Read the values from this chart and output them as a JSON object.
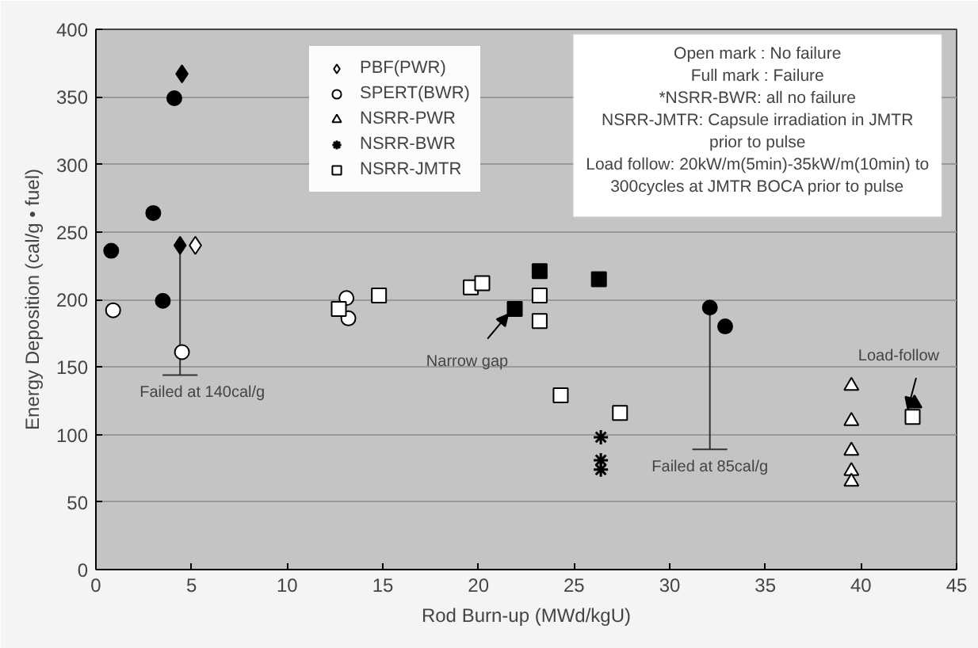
{
  "chart_data": {
    "type": "scatter",
    "xlabel": "Rod Burn-up (MWd/kgU)",
    "ylabel": "Energy Deposition (cal/g • fuel)",
    "xlim": [
      0,
      45
    ],
    "xticks": [
      0,
      5,
      10,
      15,
      20,
      25,
      30,
      35,
      40,
      45
    ],
    "ylim": [
      0,
      400
    ],
    "yticks": [
      0,
      50,
      100,
      150,
      200,
      250,
      300,
      350,
      400
    ],
    "grid": "y",
    "legend": "top",
    "series": [
      {
        "name": "PBF(PWR)",
        "marker": "diamond",
        "color": "#ffffff",
        "x": [
          5.2
        ],
        "values": [
          240
        ]
      },
      {
        "name": "SPERT(BWR)",
        "marker": "circle",
        "color": "#ffffff",
        "x": [
          0.9,
          4.5,
          13.1,
          13.2
        ],
        "values": [
          192,
          161,
          201,
          186
        ]
      },
      {
        "name": "NSRR-PWR",
        "marker": "triangle",
        "color": "#ffffff",
        "x": [
          39.5,
          39.5,
          39.5,
          39.5,
          39.5
        ],
        "values": [
          136,
          110,
          88,
          73,
          65
        ]
      },
      {
        "name": "NSRR-BWR",
        "marker": "cross",
        "color": "#000000",
        "x": [
          26.4,
          26.4,
          26.4
        ],
        "values": [
          98,
          81,
          74
        ]
      },
      {
        "name": "NSRR-JMTR",
        "marker": "square",
        "color": "#ffffff",
        "x": [
          12.7,
          14.8,
          19.6,
          20.2,
          23.2,
          23.2,
          24.3,
          27.4,
          42.7
        ],
        "values": [
          193,
          203,
          209,
          212,
          203,
          184,
          129,
          116,
          113
        ]
      },
      {
        "marker": "diamond",
        "color": "#000000",
        "x": [
          4.5,
          4.4
        ],
        "values": [
          367,
          240
        ],
        "errors": [
          null,
          [
            144,
            240
          ]
        ]
      },
      {
        "marker": "circle",
        "color": "#000000",
        "x": [
          0.8,
          3.0,
          3.5,
          4.1,
          32.1,
          32.9
        ],
        "values": [
          236,
          264,
          199,
          349,
          194,
          180
        ],
        "errors": [
          null,
          null,
          null,
          null,
          [
            89,
            194
          ],
          null
        ]
      },
      {
        "marker": "triangle",
        "color": "#000000",
        "x": [
          42.8
        ],
        "values": [
          123
        ]
      },
      {
        "marker": "square",
        "color": "#000000",
        "x": [
          21.9,
          23.2,
          26.3
        ],
        "values": [
          193,
          221,
          215
        ]
      }
    ],
    "annotations": [
      "Open mark : No failure",
      "Full mark : Failure",
      "*NSRR-BWR: all no failure",
      "NSRR-JMTR: Capsule irradiation in JMTR prior to pulse",
      "Load follow: 20kW/m(5min)-35kW/m(10min) to 300cycles at JMTR BOCA prior to pulse",
      {
        "text": "Failed at 140cal/g",
        "x": 4.4,
        "y": 144
      },
      {
        "text": "Failed at 85cal/g",
        "x": 32.1,
        "y": 89
      },
      {
        "text": "Narrow gap",
        "x": 21.9,
        "y": 193
      },
      {
        "text": "Load-follow",
        "x": 42.8,
        "y": 123
      }
    ]
  }
}
